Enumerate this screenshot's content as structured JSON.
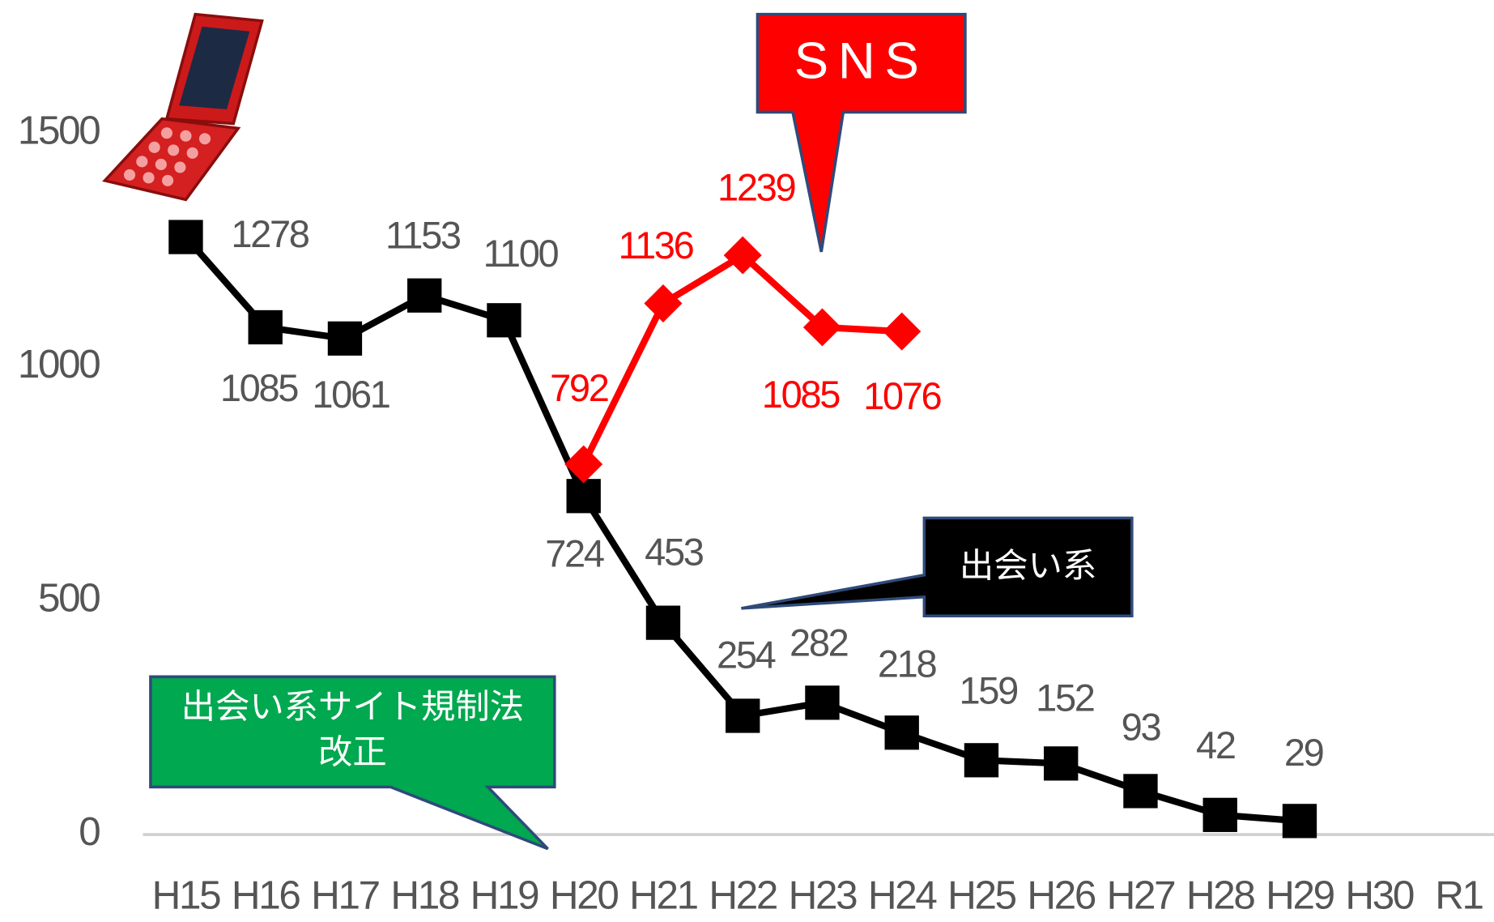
{
  "chart_data": {
    "type": "line",
    "categories": [
      "H15",
      "H16",
      "H17",
      "H18",
      "H19",
      "H20",
      "H21",
      "H22",
      "H23",
      "H24",
      "H25",
      "H26",
      "H27",
      "H28",
      "H29",
      "H30",
      "R1"
    ],
    "series": [
      {
        "name": "出会い系",
        "color": "#000000",
        "marker": "square",
        "values": [
          1278,
          1085,
          1061,
          1153,
          1100,
          724,
          453,
          254,
          282,
          218,
          159,
          152,
          93,
          42,
          29,
          null,
          null
        ]
      },
      {
        "name": "SNS",
        "color": "#ff0000",
        "marker": "diamond",
        "values": [
          null,
          null,
          null,
          null,
          null,
          792,
          1136,
          1239,
          1085,
          1076,
          null,
          null,
          null,
          null,
          null,
          null,
          null
        ]
      }
    ],
    "annotation": [
      "出会い系サイト規制法",
      "改正"
    ],
    "ylim": [
      0,
      1785
    ],
    "yticks": [
      0,
      500,
      1000,
      1500
    ],
    "grid": false
  }
}
